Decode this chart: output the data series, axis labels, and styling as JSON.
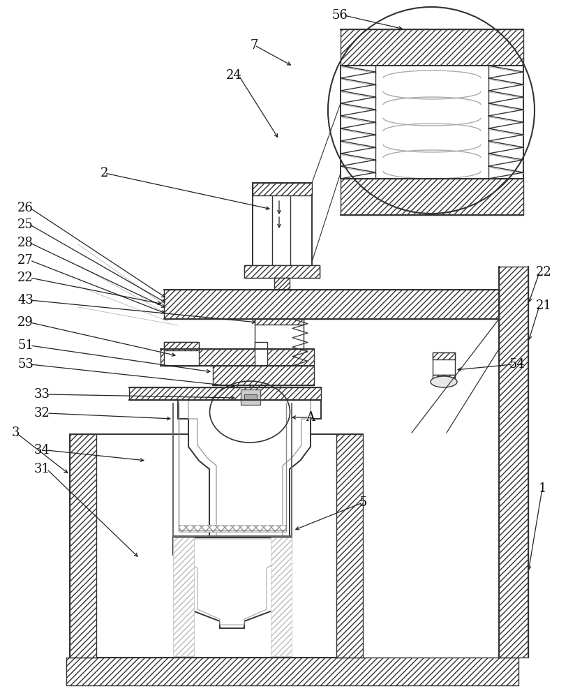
{
  "bg_color": "#ffffff",
  "lc": "#333333",
  "lc2": "#555555",
  "figsize": [
    8.34,
    10.0
  ],
  "dpi": 100
}
